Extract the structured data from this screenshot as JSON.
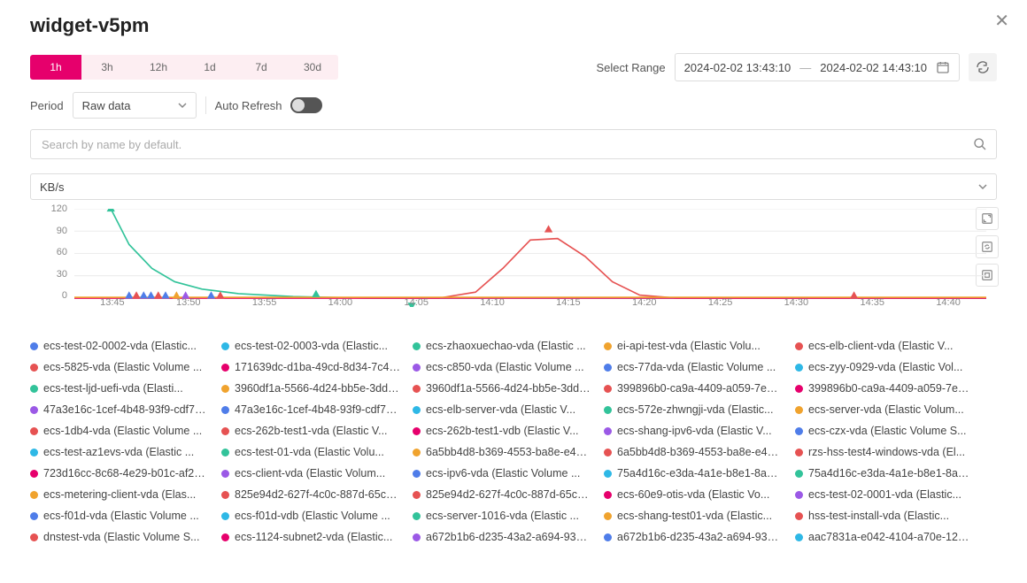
{
  "title": "widget-v5pm",
  "range_tabs": [
    "1h",
    "3h",
    "12h",
    "1d",
    "7d",
    "30d"
  ],
  "range_active": 0,
  "select_range_label": "Select Range",
  "date_from": "2024-02-02 13:43:10",
  "date_to": "2024-02-02 14:43:10",
  "period_label": "Period",
  "period_value": "Raw data",
  "auto_refresh_label": "Auto Refresh",
  "auto_refresh_on": false,
  "search_placeholder": "Search by name by default.",
  "unit_value": "KB/s",
  "chart": {
    "type": "line",
    "ylim": [
      0,
      120
    ],
    "yticks": [
      0,
      30,
      60,
      90,
      120
    ],
    "xticks": [
      "13:45",
      "13:50",
      "13:55",
      "14:00",
      "14:05",
      "14:10",
      "14:15",
      "14:20",
      "14:25",
      "14:30",
      "14:35",
      "14:40"
    ],
    "grid_color": "#ececec",
    "axis_color": "#cccccc",
    "series": [
      {
        "name": "green-curve",
        "color": "#32c39a",
        "points": [
          {
            "x": 0.04,
            "y": 120
          },
          {
            "x": 0.06,
            "y": 72
          },
          {
            "x": 0.085,
            "y": 40
          },
          {
            "x": 0.11,
            "y": 22
          },
          {
            "x": 0.14,
            "y": 12
          },
          {
            "x": 0.18,
            "y": 6
          },
          {
            "x": 0.24,
            "y": 2
          },
          {
            "x": 0.32,
            "y": 0
          },
          {
            "x": 1.0,
            "y": 0
          }
        ]
      },
      {
        "name": "red-bump",
        "color": "#e65252",
        "points": [
          {
            "x": 0.0,
            "y": 0
          },
          {
            "x": 0.4,
            "y": 0
          },
          {
            "x": 0.44,
            "y": 8
          },
          {
            "x": 0.47,
            "y": 40
          },
          {
            "x": 0.5,
            "y": 78
          },
          {
            "x": 0.53,
            "y": 80
          },
          {
            "x": 0.56,
            "y": 56
          },
          {
            "x": 0.59,
            "y": 22
          },
          {
            "x": 0.62,
            "y": 4
          },
          {
            "x": 0.66,
            "y": 0
          },
          {
            "x": 1.0,
            "y": 0
          }
        ]
      },
      {
        "name": "magenta-baseline",
        "color": "#e6006c",
        "points": [
          {
            "x": 0.0,
            "y": 0
          },
          {
            "x": 1.0,
            "y": 0
          }
        ]
      },
      {
        "name": "orange-baseline",
        "color": "#f0a32e",
        "points": [
          {
            "x": 0.0,
            "y": 1
          },
          {
            "x": 1.0,
            "y": 1
          }
        ]
      }
    ],
    "markers": [
      {
        "shape": "tri-up",
        "color": "#32c39a",
        "x": 0.04,
        "y": 120
      },
      {
        "shape": "tri-up",
        "color": "#4f7de9",
        "x": 0.06,
        "y": 3
      },
      {
        "shape": "tri-up",
        "color": "#e65252",
        "x": 0.068,
        "y": 3
      },
      {
        "shape": "tri-up",
        "color": "#4f7de9",
        "x": 0.076,
        "y": 3
      },
      {
        "shape": "tri-up",
        "color": "#4f7de9",
        "x": 0.084,
        "y": 3
      },
      {
        "shape": "tri-up",
        "color": "#e65252",
        "x": 0.092,
        "y": 3
      },
      {
        "shape": "tri-up",
        "color": "#4f7de9",
        "x": 0.1,
        "y": 3
      },
      {
        "shape": "tri-up",
        "color": "#f0a32e",
        "x": 0.112,
        "y": 3
      },
      {
        "shape": "tri-up",
        "color": "#9b59e6",
        "x": 0.122,
        "y": 3
      },
      {
        "shape": "tri-up",
        "color": "#4f7de9",
        "x": 0.15,
        "y": 3
      },
      {
        "shape": "tri-up",
        "color": "#e65252",
        "x": 0.16,
        "y": 3
      },
      {
        "shape": "tri-up",
        "color": "#32c39a",
        "x": 0.265,
        "y": 5
      },
      {
        "shape": "tri-down",
        "color": "#32c39a",
        "x": 0.37,
        "y": -10
      },
      {
        "shape": "tri-up",
        "color": "#e65252",
        "x": 0.52,
        "y": 92
      },
      {
        "shape": "tri-up",
        "color": "#e65252",
        "x": 0.855,
        "y": 3
      }
    ]
  },
  "legend_palette": {
    "blue": "#4f7de9",
    "cyan": "#2eb8e6",
    "green": "#32c39a",
    "orange": "#f0a32e",
    "red": "#e65252",
    "magenta": "#e6006c",
    "purple": "#9b59e6"
  },
  "legend": [
    [
      {
        "c": "blue",
        "t": "ecs-test-02-0002-vda (Elastic..."
      },
      {
        "c": "cyan",
        "t": "ecs-test-02-0003-vda (Elastic..."
      },
      {
        "c": "green",
        "t": "ecs-zhaoxuechao-vda (Elastic ..."
      },
      {
        "c": "orange",
        "t": "ei-api-test-vda (Elastic Volu..."
      },
      {
        "c": "red",
        "t": "ecs-elb-client-vda (Elastic V..."
      }
    ],
    [
      {
        "c": "red",
        "t": "ecs-5825-vda (Elastic Volume ..."
      },
      {
        "c": "magenta",
        "t": "171639dc-d1ba-49cd-8d34-7c40a..."
      },
      {
        "c": "purple",
        "t": "ecs-c850-vda (Elastic Volume ..."
      },
      {
        "c": "blue",
        "t": "ecs-77da-vda (Elastic Volume ..."
      },
      {
        "c": "cyan",
        "t": "ecs-zyy-0929-vda (Elastic Vol..."
      }
    ],
    [
      {
        "c": "green",
        "t": "ecs-test-ljd-uefi-vda (Elasti..."
      },
      {
        "c": "orange",
        "t": "3960df1a-5566-4d24-bb5e-3ddef..."
      },
      {
        "c": "red",
        "t": "3960df1a-5566-4d24-bb5e-3ddef..."
      },
      {
        "c": "red",
        "t": "399896b0-ca9a-4409-a059-7ee27..."
      },
      {
        "c": "magenta",
        "t": "399896b0-ca9a-4409-a059-7ee27..."
      }
    ],
    [
      {
        "c": "purple",
        "t": "47a3e16c-1cef-4b48-93f9-cdf74..."
      },
      {
        "c": "blue",
        "t": "47a3e16c-1cef-4b48-93f9-cdf74..."
      },
      {
        "c": "cyan",
        "t": "ecs-elb-server-vda (Elastic V..."
      },
      {
        "c": "green",
        "t": "ecs-572e-zhwngji-vda (Elastic..."
      },
      {
        "c": "orange",
        "t": "ecs-server-vda (Elastic Volum..."
      }
    ],
    [
      {
        "c": "red",
        "t": "ecs-1db4-vda (Elastic Volume ..."
      },
      {
        "c": "red",
        "t": "ecs-262b-test1-vda (Elastic V..."
      },
      {
        "c": "magenta",
        "t": "ecs-262b-test1-vdb (Elastic V..."
      },
      {
        "c": "purple",
        "t": "ecs-shang-ipv6-vda (Elastic V..."
      },
      {
        "c": "blue",
        "t": "ecs-czx-vda (Elastic Volume S..."
      }
    ],
    [
      {
        "c": "cyan",
        "t": "ecs-test-az1evs-vda (Elastic ..."
      },
      {
        "c": "green",
        "t": "ecs-test-01-vda (Elastic Volu..."
      },
      {
        "c": "orange",
        "t": "6a5bb4d8-b369-4553-ba8e-e4809..."
      },
      {
        "c": "red",
        "t": "6a5bb4d8-b369-4553-ba8e-e4809..."
      },
      {
        "c": "red",
        "t": "rzs-hss-test4-windows-vda (El..."
      }
    ],
    [
      {
        "c": "magenta",
        "t": "723d16cc-8c68-4e29-b01c-af206..."
      },
      {
        "c": "purple",
        "t": "ecs-client-vda (Elastic Volum..."
      },
      {
        "c": "blue",
        "t": "ecs-ipv6-vda (Elastic Volume ..."
      },
      {
        "c": "cyan",
        "t": "75a4d16c-e3da-4a1e-b8e1-8a449..."
      },
      {
        "c": "green",
        "t": "75a4d16c-e3da-4a1e-b8e1-8a449..."
      }
    ],
    [
      {
        "c": "orange",
        "t": "ecs-metering-client-vda (Elas..."
      },
      {
        "c": "red",
        "t": "825e94d2-627f-4c0c-887d-65c69..."
      },
      {
        "c": "red",
        "t": "825e94d2-627f-4c0c-887d-65c69..."
      },
      {
        "c": "magenta",
        "t": "ecs-60e9-otis-vda (Elastic Vo..."
      },
      {
        "c": "purple",
        "t": "ecs-test-02-0001-vda (Elastic..."
      }
    ],
    [
      {
        "c": "blue",
        "t": "ecs-f01d-vda (Elastic Volume ..."
      },
      {
        "c": "cyan",
        "t": "ecs-f01d-vdb (Elastic Volume ..."
      },
      {
        "c": "green",
        "t": "ecs-server-1016-vda (Elastic ..."
      },
      {
        "c": "orange",
        "t": "ecs-shang-test01-vda (Elastic..."
      },
      {
        "c": "red",
        "t": "hss-test-install-vda (Elastic..."
      }
    ],
    [
      {
        "c": "red",
        "t": "dnstest-vda (Elastic Volume S..."
      },
      {
        "c": "magenta",
        "t": "ecs-1124-subnet2-vda (Elastic..."
      },
      {
        "c": "purple",
        "t": "a672b1b6-d235-43a2-a694-93d24..."
      },
      {
        "c": "blue",
        "t": "a672b1b6-d235-43a2-a694-93d24..."
      },
      {
        "c": "cyan",
        "t": "aac7831a-e042-4104-a70e-12047..."
      }
    ]
  ]
}
